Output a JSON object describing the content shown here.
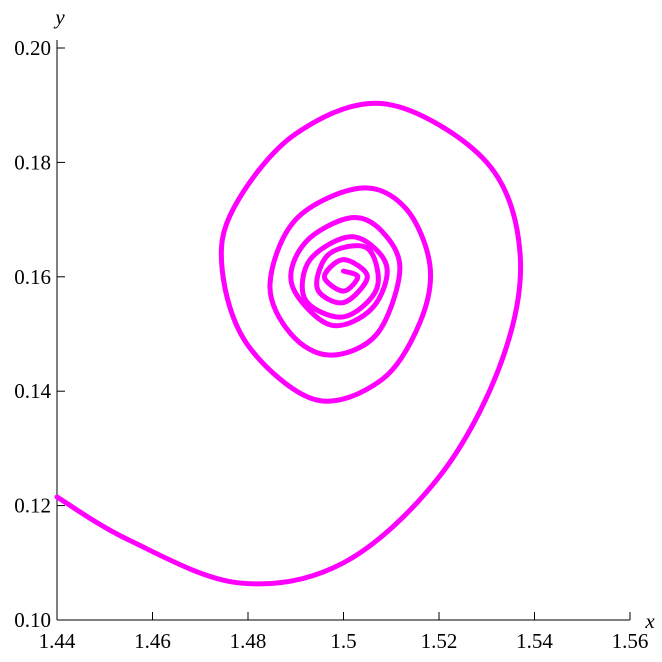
{
  "chart_data": {
    "type": "line",
    "x_label": "x",
    "y_label": "y",
    "series": [
      {
        "color": "#ff00ff",
        "x": [
          1.44,
          1.455,
          1.478,
          1.5,
          1.52,
          1.533,
          1.537,
          1.53,
          1.509,
          1.49,
          1.477,
          1.4746,
          1.48,
          1.4942,
          1.508,
          1.516,
          1.5181,
          1.513,
          1.5035,
          1.49,
          1.4846,
          1.489,
          1.4972,
          1.507,
          1.5118,
          1.508,
          1.5014,
          1.492,
          1.4892,
          1.4972,
          1.506,
          1.509,
          1.502,
          1.493,
          1.492,
          1.5,
          1.507,
          1.505,
          1.497,
          1.4945,
          1.5,
          1.505,
          1.5,
          1.496,
          1.5,
          1.503,
          1.5
        ],
        "values": [
          0.1215,
          0.114,
          0.1065,
          0.11,
          0.125,
          0.145,
          0.1638,
          0.18,
          0.1902,
          0.185,
          0.172,
          0.1612,
          0.148,
          0.1385,
          0.142,
          0.152,
          0.162,
          0.172,
          0.1755,
          0.17,
          0.1586,
          0.15,
          0.1463,
          0.15,
          0.1612,
          0.168,
          0.1703,
          0.166,
          0.1586,
          0.1516,
          0.1545,
          0.162,
          0.167,
          0.163,
          0.156,
          0.153,
          0.158,
          0.165,
          0.164,
          0.158,
          0.1555,
          0.16,
          0.163,
          0.16,
          0.1575,
          0.16,
          0.161
        ]
      }
    ],
    "xlim": [
      1.44,
      1.56
    ],
    "ylim": [
      0.1,
      0.2
    ],
    "xticks": [
      1.44,
      1.46,
      1.48,
      1.5,
      {
        "value": 1.52,
        "label": "1.52"
      },
      1.54,
      1.56
    ],
    "yticks": [
      {
        "value": 0.1,
        "label": "0.10"
      },
      0.12,
      0.14,
      0.16,
      0.18,
      {
        "value": 0.2,
        "label": "0.20"
      }
    ]
  }
}
